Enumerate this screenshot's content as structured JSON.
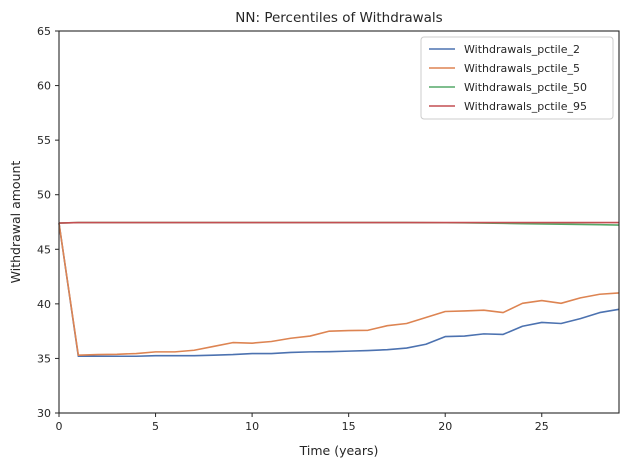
{
  "chart_data": {
    "type": "line",
    "title": "NN: Percentiles of Withdrawals",
    "xlabel": "Time (years)",
    "ylabel": "Withdrawal amount",
    "xlim": [
      0,
      29
    ],
    "ylim": [
      30,
      65
    ],
    "xticks": [
      0,
      5,
      10,
      15,
      20,
      25
    ],
    "yticks": [
      30,
      35,
      40,
      45,
      50,
      55,
      60,
      65
    ],
    "grid": false,
    "legend_position": "top-right",
    "x": [
      0,
      1,
      2,
      3,
      4,
      5,
      6,
      7,
      8,
      9,
      10,
      11,
      12,
      13,
      14,
      15,
      16,
      17,
      18,
      19,
      20,
      21,
      22,
      23,
      24,
      25,
      26,
      27,
      28,
      29
    ],
    "series": [
      {
        "name": "Withdrawals_pctile_2",
        "color": "#4c72b0",
        "values": [
          47.4,
          35.2,
          35.2,
          35.2,
          35.2,
          35.25,
          35.25,
          35.25,
          35.3,
          35.35,
          35.45,
          35.45,
          35.55,
          35.6,
          35.62,
          35.67,
          35.72,
          35.8,
          35.95,
          36.3,
          37.0,
          37.05,
          37.25,
          37.2,
          37.95,
          38.3,
          38.2,
          38.65,
          39.2,
          39.5
        ]
      },
      {
        "name": "Withdrawals_pctile_5",
        "color": "#dd8452",
        "values": [
          47.4,
          35.3,
          35.35,
          35.38,
          35.45,
          35.6,
          35.6,
          35.75,
          36.1,
          36.45,
          36.4,
          36.55,
          36.85,
          37.05,
          37.5,
          37.55,
          37.58,
          38.0,
          38.2,
          38.75,
          39.3,
          39.35,
          39.42,
          39.2,
          40.05,
          40.3,
          40.05,
          40.55,
          40.88,
          41.0
        ]
      },
      {
        "name": "Withdrawals_pctile_50",
        "color": "#55a868",
        "values": [
          47.4,
          47.45,
          47.45,
          47.45,
          47.45,
          47.45,
          47.45,
          47.45,
          47.45,
          47.45,
          47.45,
          47.45,
          47.45,
          47.45,
          47.45,
          47.45,
          47.45,
          47.45,
          47.45,
          47.44,
          47.43,
          47.42,
          47.4,
          47.38,
          47.35,
          47.32,
          47.3,
          47.28,
          47.25,
          47.22
        ]
      },
      {
        "name": "Withdrawals_pctile_95",
        "color": "#c44e52",
        "values": [
          47.4,
          47.45,
          47.45,
          47.45,
          47.45,
          47.45,
          47.45,
          47.45,
          47.45,
          47.45,
          47.45,
          47.45,
          47.45,
          47.45,
          47.45,
          47.45,
          47.45,
          47.45,
          47.45,
          47.45,
          47.45,
          47.45,
          47.45,
          47.45,
          47.45,
          47.45,
          47.45,
          47.45,
          47.45,
          47.45
        ]
      }
    ]
  }
}
